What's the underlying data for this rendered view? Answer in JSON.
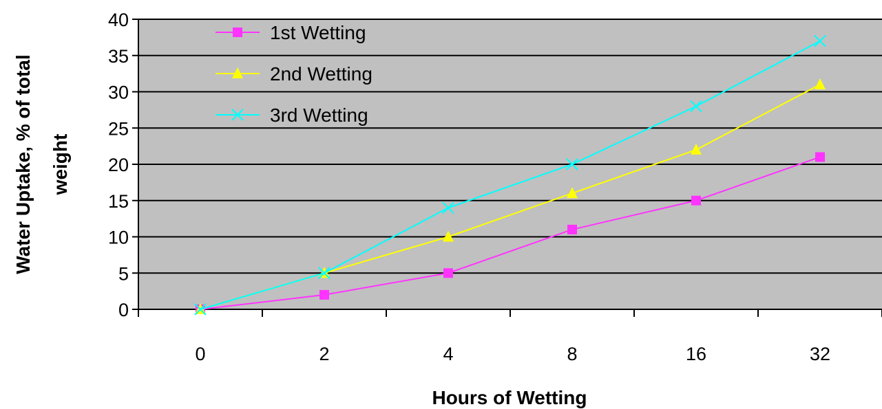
{
  "chart_data": {
    "type": "line",
    "categories": [
      "0",
      "2",
      "4",
      "8",
      "16",
      "32"
    ],
    "series": [
      {
        "name": "1st Wetting",
        "values": [
          0,
          2,
          5,
          11,
          15,
          21
        ],
        "color": "#FF33FF",
        "marker": "square"
      },
      {
        "name": "2nd Wetting",
        "values": [
          0,
          5,
          10,
          16,
          22,
          31
        ],
        "color": "#FFFF00",
        "marker": "triangle"
      },
      {
        "name": "3rd Wetting",
        "values": [
          0,
          5,
          14,
          20,
          28,
          37
        ],
        "color": "#00FFFF",
        "marker": "x"
      }
    ],
    "xlabel": "Hours of Wetting",
    "ylabel": [
      "Water Uptake, % of total",
      "weight"
    ],
    "ylim": [
      0,
      40
    ],
    "yticks": [
      0,
      5,
      10,
      15,
      20,
      25,
      30,
      35,
      40
    ],
    "grid": true,
    "plot_background": "#C0C0C0",
    "legend_position": "top-left"
  }
}
